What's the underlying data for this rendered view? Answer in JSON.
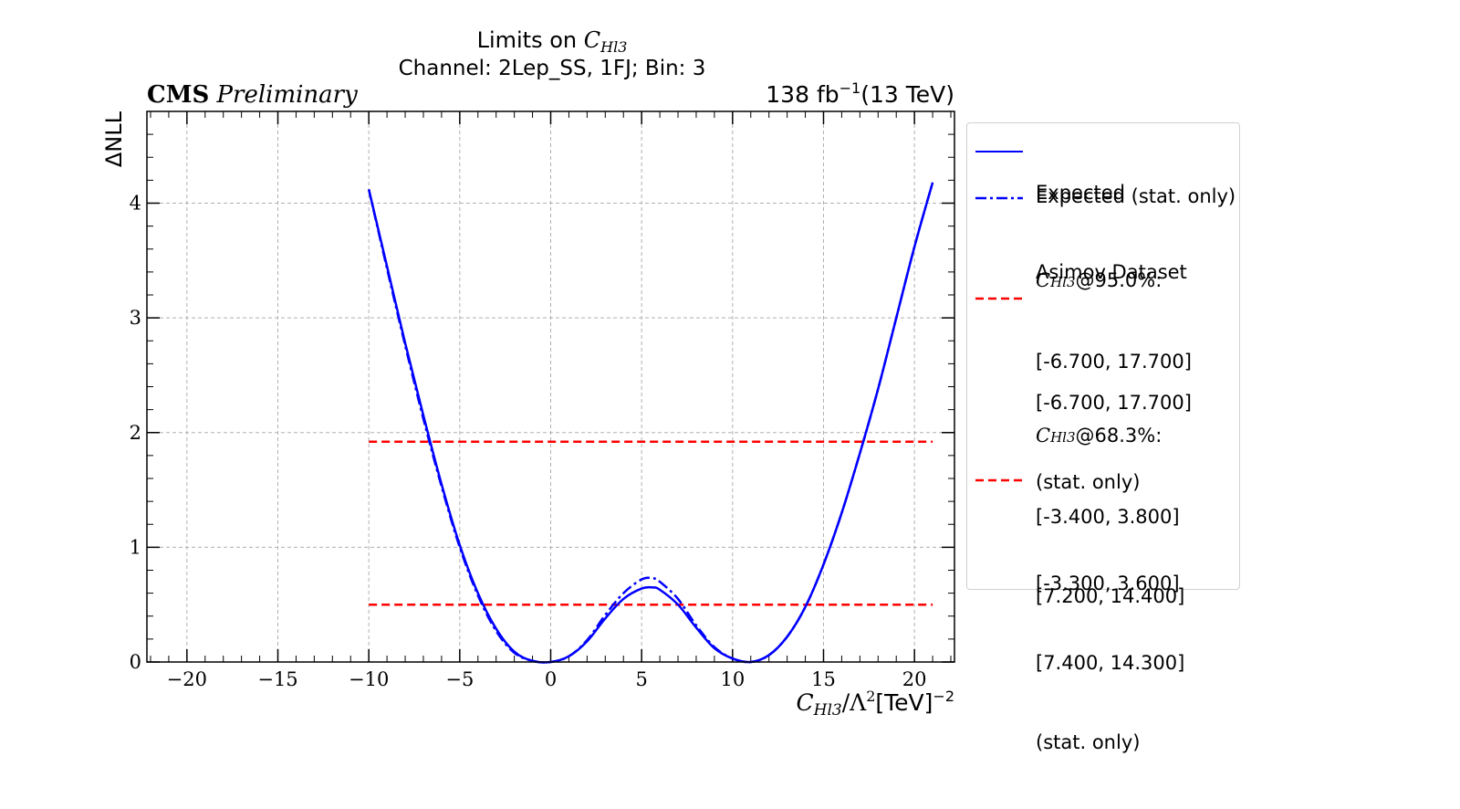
{
  "chart_data": {
    "type": "line",
    "title": "Limits on C_{Hl3}",
    "title_prefix": "Limits on",
    "title_symbol": "C",
    "title_symbol_sub": "Hl3",
    "subtitle": "Channel: 2Lep_SS, 1FJ; Bin: 3",
    "experiment_label": "CMS",
    "experiment_sublabel": "Preliminary",
    "lumi_label": "138 fb",
    "lumi_exponent": "−1",
    "energy_label": "(13 TeV)",
    "xlabel_symbol": "C",
    "xlabel_symbol_sub": "Hl3",
    "xlabel_rest": "/Λ",
    "xlabel_rest_exp": "2",
    "xlabel_units": "[TeV]",
    "xlabel_units_exp": "−2",
    "ylabel": "ΔNLL",
    "xlim": [
      -22.2,
      22.2
    ],
    "ylim": [
      0,
      4.8
    ],
    "xticks": [
      -20,
      -15,
      -10,
      -5,
      0,
      5,
      10,
      15,
      20
    ],
    "xtick_labels": [
      "−20",
      "−15",
      "−10",
      "−5",
      "0",
      "5",
      "10",
      "15",
      "20"
    ],
    "yticks": [
      0,
      1,
      2,
      3,
      4
    ],
    "ytick_labels": [
      "0",
      "1",
      "2",
      "3",
      "4"
    ],
    "grid": true,
    "legend_position": "outside-right",
    "series": [
      {
        "name": "Expected Asimov Dataset",
        "style": "solid",
        "color": "#0000ff",
        "x": [
          -10,
          -9,
          -8,
          -7,
          -6,
          -5,
          -4,
          -3,
          -2,
          -1,
          0,
          1,
          2,
          3,
          4,
          5,
          5.6,
          6,
          7,
          8,
          9,
          10,
          11,
          12,
          13,
          14,
          15,
          16,
          17,
          18,
          19,
          20,
          21
        ],
        "y": [
          4.12,
          3.45,
          2.78,
          2.15,
          1.55,
          1.02,
          0.6,
          0.29,
          0.09,
          0.01,
          0.0,
          0.05,
          0.18,
          0.38,
          0.55,
          0.64,
          0.65,
          0.63,
          0.5,
          0.3,
          0.12,
          0.03,
          0.0,
          0.06,
          0.22,
          0.48,
          0.85,
          1.3,
          1.82,
          2.38,
          3.0,
          3.62,
          4.18
        ]
      },
      {
        "name": "Expected (stat. only)",
        "style": "dashdot",
        "color": "#0000ff",
        "x": [
          -10,
          -9,
          -8,
          -7,
          -6,
          -5,
          -4,
          -3,
          -2,
          -1,
          0,
          1,
          2,
          3,
          4,
          5,
          5.6,
          6,
          7,
          8,
          9,
          10,
          11,
          12,
          13,
          14,
          15,
          16,
          17,
          18,
          19,
          20,
          21
        ],
        "y": [
          4.12,
          3.43,
          2.76,
          2.12,
          1.53,
          1.0,
          0.58,
          0.27,
          0.08,
          0.01,
          0.0,
          0.05,
          0.19,
          0.41,
          0.6,
          0.72,
          0.73,
          0.7,
          0.55,
          0.32,
          0.13,
          0.03,
          0.0,
          0.06,
          0.22,
          0.48,
          0.85,
          1.3,
          1.82,
          2.38,
          3.0,
          3.62,
          4.18
        ]
      }
    ],
    "reference_lines": [
      {
        "y": 1.92,
        "x": [
          -10,
          21
        ],
        "style": "dashed",
        "color": "#ff0000",
        "confidence": "95.0%"
      },
      {
        "y": 0.5,
        "x": [
          -10,
          21
        ],
        "style": "dashed",
        "color": "#ff0000",
        "confidence": "68.3%"
      }
    ],
    "legend": {
      "entries": [
        {
          "lines": [
            "Expected",
            "Asimov Dataset"
          ],
          "swatch": "solid-blue"
        },
        {
          "lines": [
            "Expected (stat. only)"
          ],
          "swatch": "dashdot-blue"
        },
        {
          "symbol": "C",
          "symbol_sub": "Hl3",
          "suffix": "@95.0%:",
          "lines": [
            "[-6.700, 17.700]"
          ],
          "swatch": "none"
        },
        {
          "lines": [
            "",
            "[-6.700, 17.700]",
            "(stat. only)"
          ],
          "swatch": "dashed-red"
        },
        {
          "symbol": "C",
          "symbol_sub": "Hl3",
          "suffix": "@68.3%:",
          "lines": [
            "[-3.400, 3.800]",
            "[7.200, 14.400]"
          ],
          "swatch": "none"
        },
        {
          "lines": [
            "",
            "[-3.300, 3.600]",
            "[7.400, 14.300]",
            "(stat. only)"
          ],
          "swatch": "dashed-red"
        }
      ]
    }
  }
}
